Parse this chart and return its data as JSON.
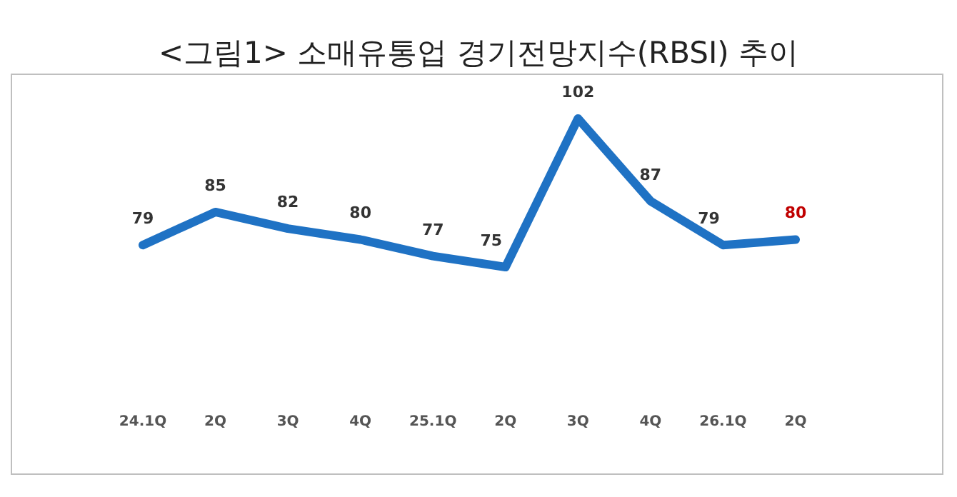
{
  "chart_data": {
    "type": "line",
    "title": "<그림1> 소매유통업 경기전망지수(RBSI) 추이",
    "categories": [
      "24.1Q",
      "2Q",
      "3Q",
      "4Q",
      "25.1Q",
      "2Q",
      "3Q",
      "4Q",
      "26.1Q",
      "2Q"
    ],
    "series": [
      {
        "color": "#1f72c4",
        "values": [
          79,
          85,
          82,
          80,
          77,
          75,
          102,
          87,
          79,
          80
        ]
      }
    ],
    "data_labels": true,
    "marker": "none",
    "line_style": "solid"
  }
}
